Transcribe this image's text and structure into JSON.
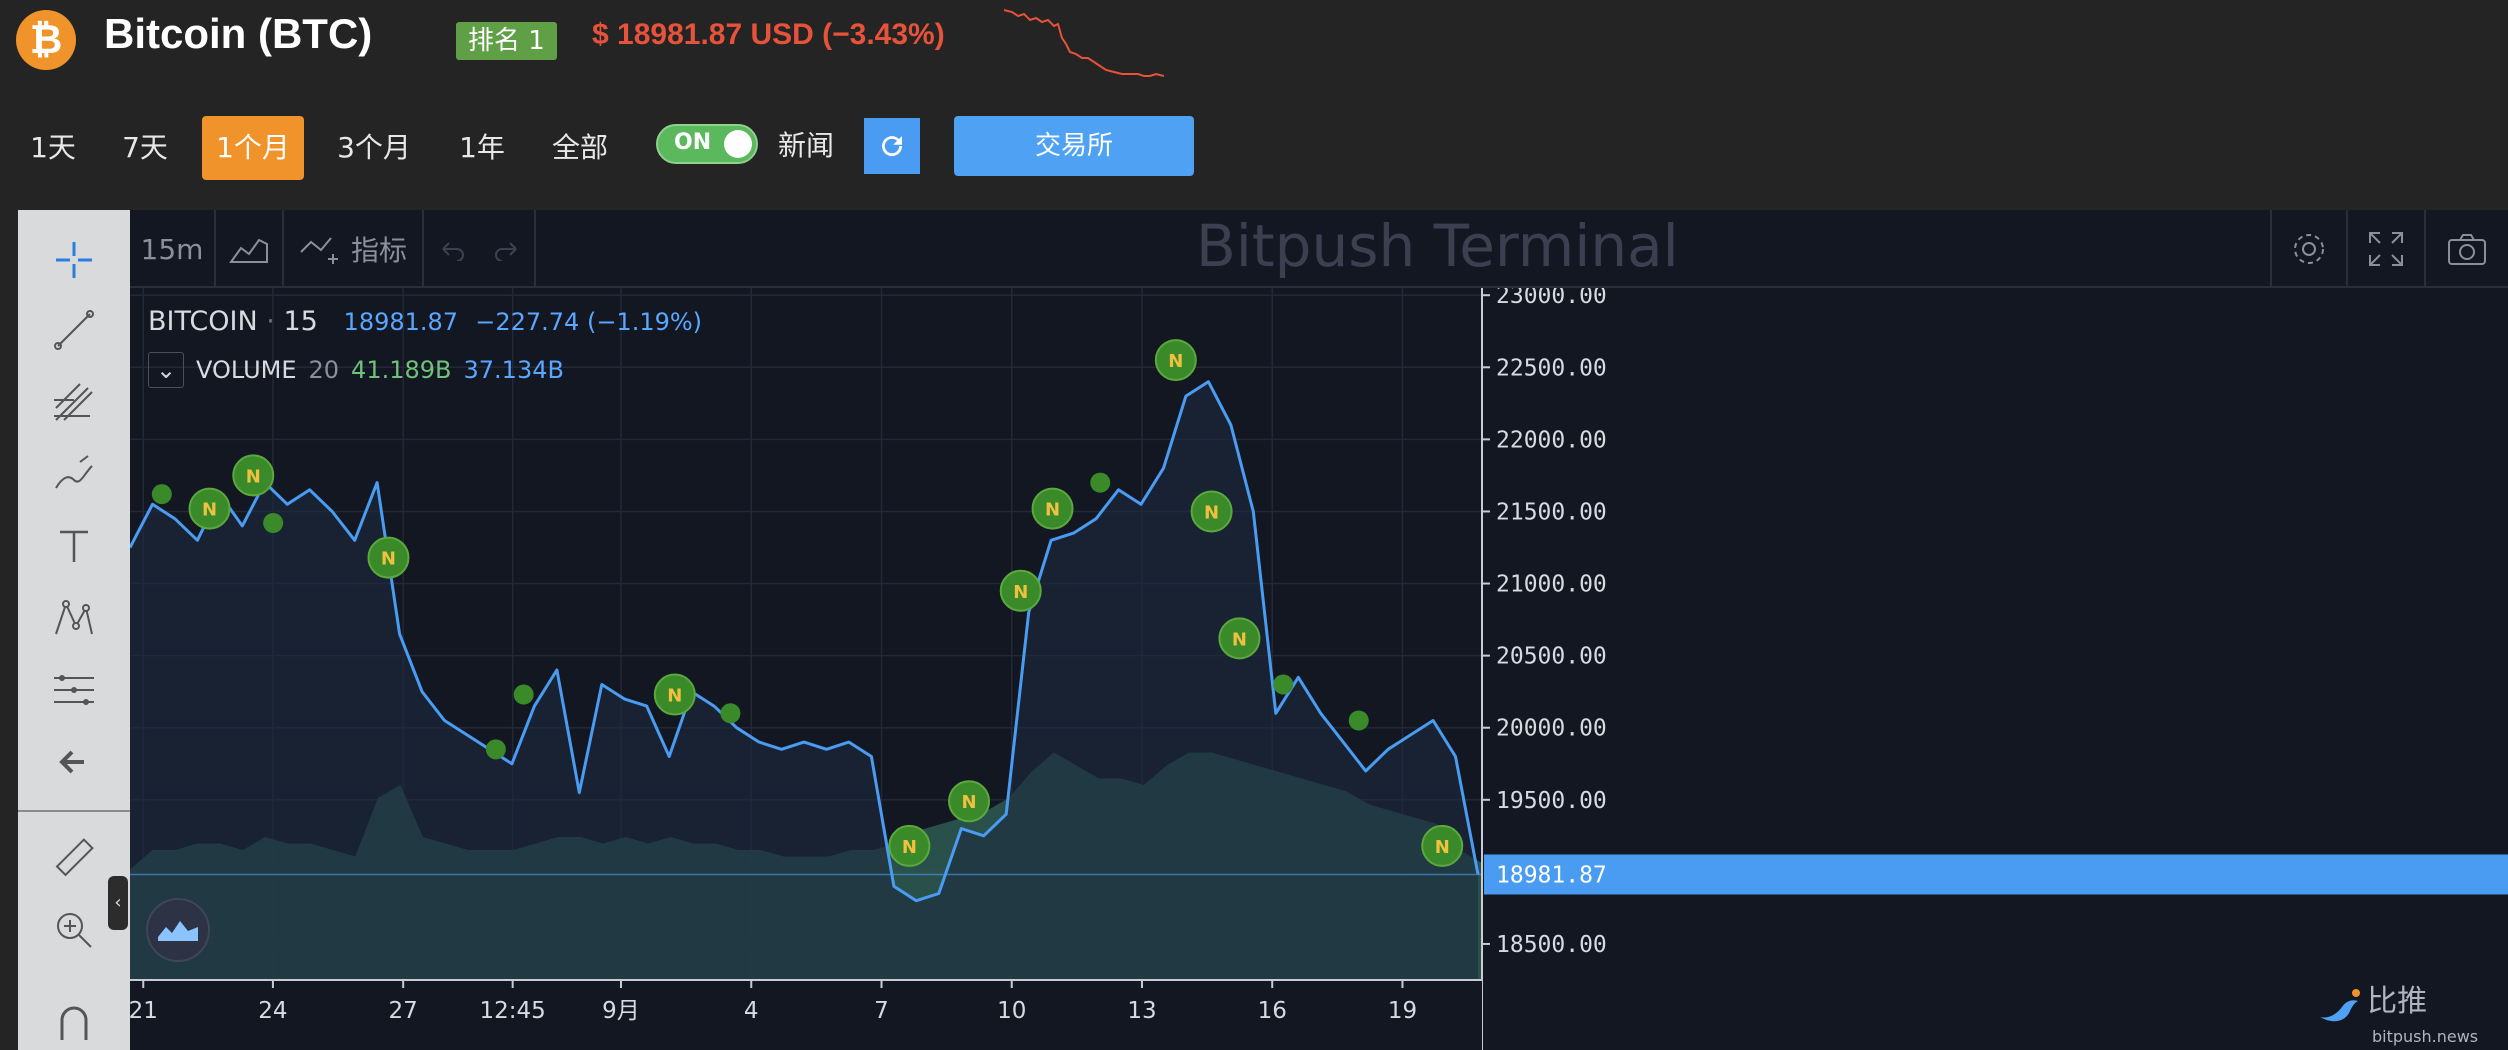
{
  "header": {
    "coin_symbol_glyph": "₿",
    "coin_name": "Bitcoin (BTC)",
    "rank_badge": "排名 1",
    "price": "$ 18981.87 USD (−3.43%)",
    "colors": {
      "accent": "#f0932a",
      "price_down": "#e6523a",
      "rank_bg": "#5f9f45",
      "button_blue": "#4ea1f3"
    }
  },
  "timeframes": [
    "1天",
    "7天",
    "1个月",
    "3个月",
    "1年",
    "全部"
  ],
  "active_timeframe": "1个月",
  "news_toggle": {
    "state": "ON",
    "label": "新闻"
  },
  "exchange_button": "交易所",
  "terminal": {
    "interval": "15m",
    "indicators_label": "指标",
    "watermark": "Bitpush Terminal",
    "legend": {
      "symbol": "BITCOIN",
      "interval": "15",
      "last": "18981.87",
      "change": "−227.74 (−1.19%)",
      "volume_label": "VOLUME",
      "volume_period": "20",
      "volume_a": "41.189B",
      "volume_b": "37.134B"
    },
    "price_tag": "18981.87",
    "brand": {
      "cn": "比推",
      "en": "bitpush.news"
    }
  },
  "chart_data": {
    "type": "line",
    "series": [
      {
        "name": "BITCOIN",
        "x_index": [
          0,
          5,
          10,
          15,
          20,
          25,
          30,
          35,
          40,
          45,
          50,
          55,
          60,
          65,
          70,
          75,
          80,
          85,
          90,
          95,
          100,
          105,
          110,
          115,
          120,
          125,
          130,
          135,
          140,
          145,
          150,
          155,
          160,
          165,
          170,
          175,
          180,
          185,
          190,
          195,
          200,
          205,
          210,
          215,
          220,
          225,
          230,
          235,
          240,
          245,
          250,
          255,
          260,
          265,
          270,
          275,
          280,
          285,
          290,
          295,
          300
        ],
        "values": [
          21250,
          21550,
          21450,
          21300,
          21620,
          21400,
          21700,
          21550,
          21650,
          21500,
          21300,
          21700,
          20650,
          20250,
          20050,
          19950,
          19850,
          19750,
          20150,
          20400,
          19550,
          20300,
          20200,
          20150,
          19800,
          20250,
          20150,
          20000,
          19900,
          19850,
          19900,
          19850,
          19900,
          19800,
          18900,
          18800,
          18850,
          19300,
          19250,
          19400,
          20800,
          21300,
          21350,
          21450,
          21650,
          21550,
          21800,
          22300,
          22400,
          22100,
          21500,
          20100,
          20350,
          20100,
          19900,
          19700,
          19850,
          19950,
          20050,
          19800,
          18981.87
        ]
      }
    ],
    "volume_area": [
      17,
      20,
      20,
      21,
      21,
      20,
      22,
      21,
      21,
      20,
      19,
      28,
      30,
      22,
      21,
      20,
      20,
      20,
      21,
      22,
      22,
      21,
      22,
      21,
      22,
      21,
      21,
      20,
      20,
      19,
      19,
      19,
      20,
      20,
      21,
      23,
      24,
      25,
      26,
      28,
      32,
      35,
      33,
      31,
      31,
      30,
      33,
      35,
      35,
      34,
      33,
      32,
      31,
      30,
      29,
      27,
      26,
      25,
      24,
      20,
      18
    ],
    "x_tick_labels": [
      "21",
      "24",
      "27",
      "12:45",
      "9月",
      "4",
      "7",
      "10",
      "13",
      "16",
      "19"
    ],
    "y_tick_labels": [
      "23000.00",
      "22500.00",
      "22000.00",
      "21500.00",
      "21000.00",
      "20500.00",
      "20000.00",
      "19500.00",
      "18500.00"
    ],
    "ylim": [
      18250,
      23050
    ],
    "news_markers": [
      {
        "i": 8,
        "v": 21620,
        "n": false
      },
      {
        "i": 20,
        "v": 21520,
        "n": true
      },
      {
        "i": 31,
        "v": 21750,
        "n": true
      },
      {
        "i": 36,
        "v": 21420,
        "n": false
      },
      {
        "i": 65,
        "v": 21180,
        "n": true
      },
      {
        "i": 92,
        "v": 19850,
        "n": false
      },
      {
        "i": 99,
        "v": 20230,
        "n": false
      },
      {
        "i": 137,
        "v": 20230,
        "n": true
      },
      {
        "i": 151,
        "v": 20100,
        "n": false
      },
      {
        "i": 196,
        "v": 19180,
        "n": true
      },
      {
        "i": 211,
        "v": 19490,
        "n": true
      },
      {
        "i": 224,
        "v": 20950,
        "n": true
      },
      {
        "i": 232,
        "v": 21520,
        "n": true
      },
      {
        "i": 244,
        "v": 21700,
        "n": false
      },
      {
        "i": 263,
        "v": 22550,
        "n": true
      },
      {
        "i": 272,
        "v": 21500,
        "n": true
      },
      {
        "i": 279,
        "v": 20620,
        "n": true
      },
      {
        "i": 290,
        "v": 20300,
        "n": false
      },
      {
        "i": 309,
        "v": 20050,
        "n": false
      },
      {
        "i": 330,
        "v": 19180,
        "n": true
      }
    ],
    "grid": true
  }
}
